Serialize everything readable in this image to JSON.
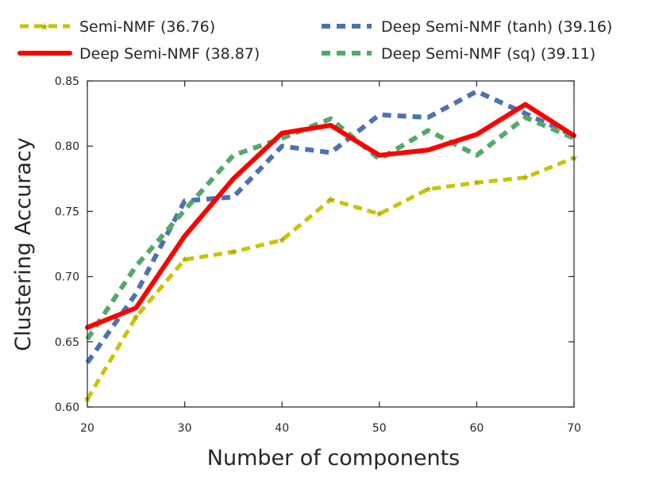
{
  "chart_data": {
    "type": "line",
    "title": "",
    "xlabel": "Number of components",
    "ylabel": "Clustering Accuracy",
    "xlim": [
      20,
      70
    ],
    "ylim": [
      0.6,
      0.85
    ],
    "x_ticks": [
      "20",
      "30",
      "40",
      "50",
      "60",
      "70"
    ],
    "y_ticks": [
      "0.60",
      "0.65",
      "0.70",
      "0.75",
      "0.80",
      "0.85"
    ],
    "grid": false,
    "legend_position": "top",
    "x": [
      20,
      25,
      30,
      35,
      40,
      45,
      50,
      55,
      60,
      65,
      70
    ],
    "series": [
      {
        "name": "Semi-NMF (36.76)",
        "color": "#c8c400",
        "style": "dashed-star",
        "values": [
          0.606,
          0.669,
          0.713,
          0.719,
          0.728,
          0.759,
          0.748,
          0.767,
          0.772,
          0.776,
          0.791
        ]
      },
      {
        "name": "Deep Semi-NMF (38.87)",
        "color": "#ff0000",
        "style": "solid",
        "values": [
          0.661,
          0.676,
          0.731,
          0.775,
          0.81,
          0.816,
          0.793,
          0.797,
          0.809,
          0.832,
          0.808
        ]
      },
      {
        "name": "Deep Semi-NMF (tanh) (39.16)",
        "color": "#4c72b0",
        "style": "dashed",
        "values": [
          0.634,
          0.687,
          0.758,
          0.761,
          0.8,
          0.795,
          0.824,
          0.822,
          0.842,
          0.825,
          0.808
        ]
      },
      {
        "name": "Deep Semi-NMF (sq) (39.11)",
        "color": "#55a868",
        "style": "dashed",
        "values": [
          0.652,
          0.708,
          0.751,
          0.793,
          0.806,
          0.821,
          0.79,
          0.812,
          0.793,
          0.822,
          0.806
        ]
      }
    ]
  }
}
